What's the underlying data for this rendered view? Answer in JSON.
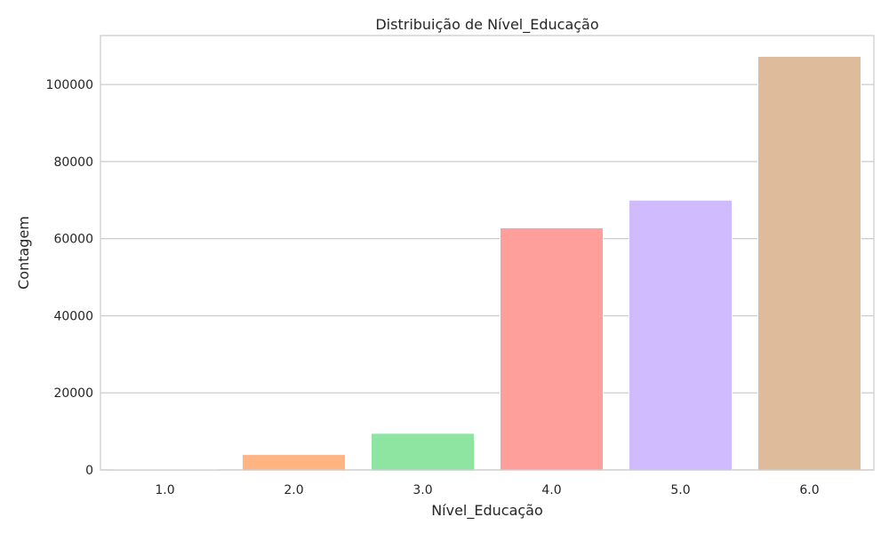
{
  "chart_data": {
    "type": "bar",
    "title": "Distribuição de Nível_Educação",
    "xlabel": "Nível_Educação",
    "ylabel": "Contagem",
    "categories": [
      "1.0",
      "2.0",
      "3.0",
      "4.0",
      "5.0",
      "6.0"
    ],
    "values": [
      200,
      4000,
      9500,
      62800,
      70000,
      107300
    ],
    "colors": [
      "#a1c9f4",
      "#ffb482",
      "#8de5a1",
      "#ff9f9b",
      "#d0bbff",
      "#debb9b"
    ],
    "yticks": [
      0,
      20000,
      40000,
      60000,
      80000,
      100000
    ],
    "ylim": [
      0,
      112700
    ],
    "grid": "y-only",
    "legend": "none"
  }
}
